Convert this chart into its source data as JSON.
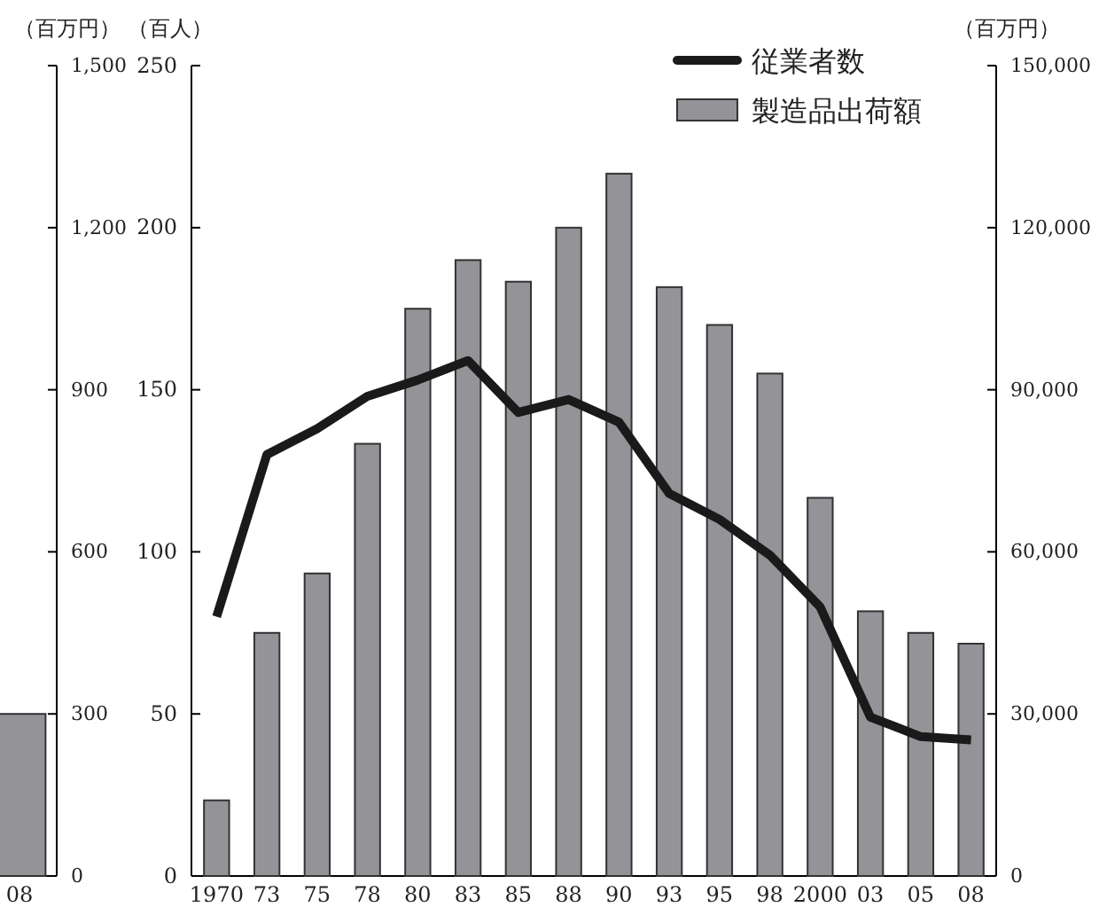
{
  "chart_data": [
    {
      "type": "bar",
      "categories": [
        "08"
      ],
      "series": [
        {
          "color": "#939398",
          "values": [
            300
          ],
          "axis": "y2"
        }
      ],
      "y2lim": [
        0,
        1500
      ],
      "y2ticks": [
        0,
        300,
        600,
        900,
        {
          "value": 1200,
          "label": "1,200"
        },
        {
          "value": 1500,
          "label": "1,500"
        }
      ],
      "y2label": "（百万円）",
      "legend": false
    },
    {
      "type": "bar",
      "categories": [
        "1970",
        "73",
        "75",
        "78",
        "80",
        "83",
        "85",
        "88",
        "90",
        "93",
        "95",
        "98",
        "2000",
        "03",
        "05",
        "08"
      ],
      "series": [
        {
          "type": "line",
          "name": "従業者数",
          "color": "#1a1a1a",
          "values": [
            80,
            130,
            138,
            148,
            153,
            159,
            143,
            147,
            140,
            118,
            110,
            99,
            83,
            49,
            43,
            42
          ]
        },
        {
          "name": "製造品出荷額",
          "color": "#939398",
          "axis": "y2",
          "values": [
            14000,
            45000,
            56000,
            80000,
            105000,
            114000,
            110000,
            120000,
            130000,
            109000,
            102000,
            93000,
            70000,
            49000,
            45000,
            43000
          ]
        }
      ],
      "ylim": [
        0,
        250
      ],
      "yticks": [
        0,
        50,
        100,
        150,
        200,
        250
      ],
      "ylabel": "（百人）",
      "y2lim": [
        0,
        150000
      ],
      "y2ticks": [
        0,
        {
          "value": 30000,
          "label": "30,000"
        },
        {
          "value": 60000,
          "label": "60,000"
        },
        {
          "value": 90000,
          "label": "90,000"
        },
        {
          "value": 120000,
          "label": "120,000"
        },
        {
          "value": 150000,
          "label": "150,000"
        }
      ],
      "y2label": "（百万円）",
      "legend": "top right",
      "line_style": "solid",
      "marker": "none"
    }
  ]
}
